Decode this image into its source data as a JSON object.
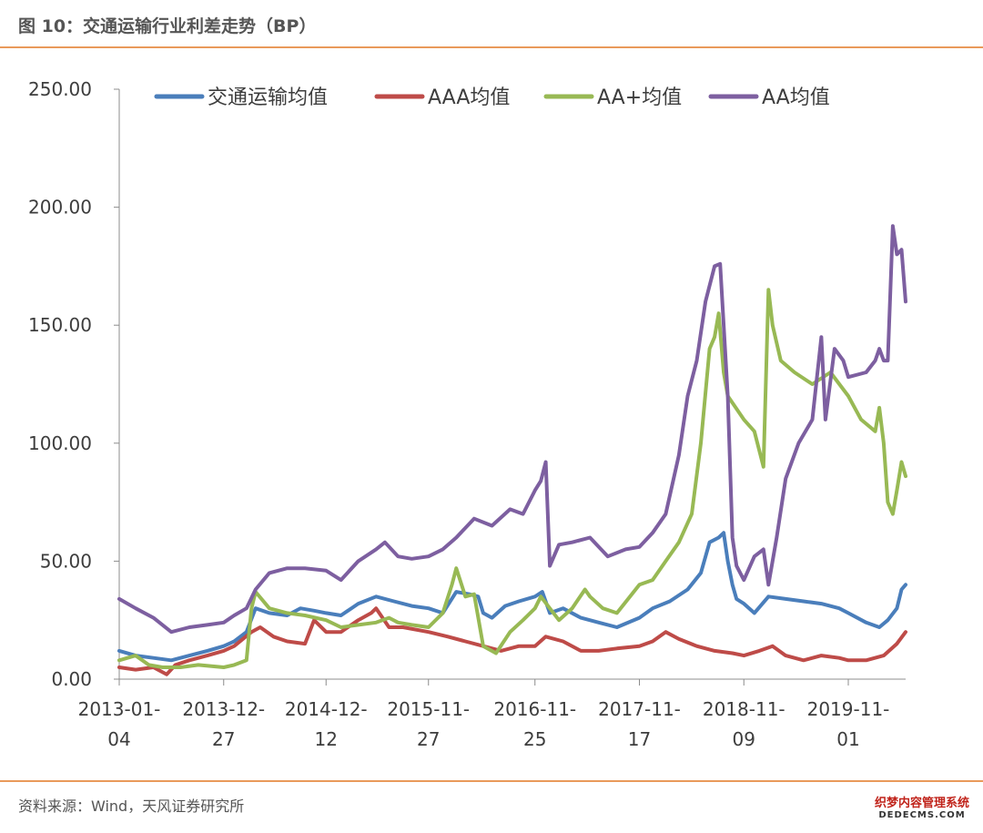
{
  "figure": {
    "title": "图 10：交通运输行业利差走势（BP）",
    "source": "资料来源：Wind，天风证券研究所",
    "watermark_top": "织梦内容管理系统",
    "watermark_bottom": "DEDECMS.COM"
  },
  "colors": {
    "accent_rule": "#e99a5a",
    "series": [
      "#4a7ebb",
      "#be4b48",
      "#98b954",
      "#7d5fa0"
    ]
  },
  "chart_data": {
    "type": "line",
    "title": "",
    "xlabel": "",
    "ylabel": "",
    "ylim": [
      0,
      250
    ],
    "y_ticks": [
      "0.00",
      "50.00",
      "100.00",
      "150.00",
      "200.00",
      "250.00"
    ],
    "x_tick_labels": [
      [
        "2013-01-",
        "04"
      ],
      [
        "2013-12-",
        "27"
      ],
      [
        "2014-12-",
        "12"
      ],
      [
        "2015-11-",
        "27"
      ],
      [
        "2016-11-",
        "25"
      ],
      [
        "2017-11-",
        "17"
      ],
      [
        "2018-11-",
        "09"
      ],
      [
        "2019-11-",
        "01"
      ]
    ],
    "x_tick_dates": [
      "2013-01-04",
      "2013-12-27",
      "2014-12-12",
      "2015-11-27",
      "2016-11-25",
      "2017-11-17",
      "2018-11-09",
      "2019-11-01"
    ],
    "grid": false,
    "legend_position": "top",
    "series": [
      {
        "name": "交通运输均值",
        "color": "#4a7ebb",
        "points": [
          [
            "2013-01-04",
            12
          ],
          [
            "2013-03-01",
            10
          ],
          [
            "2013-05-01",
            9
          ],
          [
            "2013-07-01",
            8
          ],
          [
            "2013-09-01",
            10
          ],
          [
            "2013-11-01",
            12
          ],
          [
            "2013-12-27",
            14
          ],
          [
            "2014-02-01",
            16
          ],
          [
            "2014-03-15",
            20
          ],
          [
            "2014-04-15",
            30
          ],
          [
            "2014-06-01",
            28
          ],
          [
            "2014-08-01",
            27
          ],
          [
            "2014-09-15",
            30
          ],
          [
            "2014-11-01",
            29
          ],
          [
            "2014-12-12",
            28
          ],
          [
            "2015-02-01",
            27
          ],
          [
            "2015-04-01",
            32
          ],
          [
            "2015-06-01",
            35
          ],
          [
            "2015-08-01",
            33
          ],
          [
            "2015-10-01",
            31
          ],
          [
            "2015-11-27",
            30
          ],
          [
            "2016-01-15",
            28
          ],
          [
            "2016-03-01",
            37
          ],
          [
            "2016-04-15",
            36
          ],
          [
            "2016-05-15",
            35
          ],
          [
            "2016-06-01",
            28
          ],
          [
            "2016-07-01",
            26
          ],
          [
            "2016-08-15",
            31
          ],
          [
            "2016-10-01",
            33
          ],
          [
            "2016-11-25",
            35
          ],
          [
            "2016-12-20",
            37
          ],
          [
            "2017-01-15",
            28
          ],
          [
            "2017-03-01",
            30
          ],
          [
            "2017-05-01",
            26
          ],
          [
            "2017-07-01",
            24
          ],
          [
            "2017-09-01",
            22
          ],
          [
            "2017-11-17",
            26
          ],
          [
            "2018-01-01",
            30
          ],
          [
            "2018-03-01",
            33
          ],
          [
            "2018-05-01",
            38
          ],
          [
            "2018-06-15",
            45
          ],
          [
            "2018-07-15",
            58
          ],
          [
            "2018-08-15",
            60
          ],
          [
            "2018-09-01",
            62
          ],
          [
            "2018-09-15",
            50
          ],
          [
            "2018-10-01",
            40
          ],
          [
            "2018-10-15",
            34
          ],
          [
            "2018-11-09",
            32
          ],
          [
            "2018-12-15",
            28
          ],
          [
            "2019-02-01",
            35
          ],
          [
            "2019-04-01",
            34
          ],
          [
            "2019-06-01",
            33
          ],
          [
            "2019-08-01",
            32
          ],
          [
            "2019-10-01",
            30
          ],
          [
            "2019-11-01",
            28
          ],
          [
            "2020-01-01",
            24
          ],
          [
            "2020-02-15",
            22
          ],
          [
            "2020-03-15",
            25
          ],
          [
            "2020-04-15",
            30
          ],
          [
            "2020-05-01",
            38
          ],
          [
            "2020-05-15",
            40
          ]
        ]
      },
      {
        "name": "AAA均值",
        "color": "#be4b48",
        "points": [
          [
            "2013-01-04",
            5
          ],
          [
            "2013-03-01",
            4
          ],
          [
            "2013-05-01",
            5
          ],
          [
            "2013-06-15",
            2
          ],
          [
            "2013-07-15",
            6
          ],
          [
            "2013-09-01",
            8
          ],
          [
            "2013-11-01",
            10
          ],
          [
            "2013-12-27",
            12
          ],
          [
            "2014-02-01",
            14
          ],
          [
            "2014-04-01",
            20
          ],
          [
            "2014-05-01",
            22
          ],
          [
            "2014-06-15",
            18
          ],
          [
            "2014-08-01",
            16
          ],
          [
            "2014-10-01",
            15
          ],
          [
            "2014-11-01",
            25
          ],
          [
            "2014-12-12",
            20
          ],
          [
            "2015-02-01",
            20
          ],
          [
            "2015-04-01",
            25
          ],
          [
            "2015-05-15",
            28
          ],
          [
            "2015-06-01",
            30
          ],
          [
            "2015-07-15",
            22
          ],
          [
            "2015-09-01",
            22
          ],
          [
            "2015-11-27",
            20
          ],
          [
            "2016-02-01",
            18
          ],
          [
            "2016-04-01",
            16
          ],
          [
            "2016-06-01",
            14
          ],
          [
            "2016-08-01",
            12
          ],
          [
            "2016-10-01",
            14
          ],
          [
            "2016-11-25",
            14
          ],
          [
            "2017-01-01",
            18
          ],
          [
            "2017-03-01",
            16
          ],
          [
            "2017-05-01",
            12
          ],
          [
            "2017-07-01",
            12
          ],
          [
            "2017-09-01",
            13
          ],
          [
            "2017-11-17",
            14
          ],
          [
            "2018-01-01",
            16
          ],
          [
            "2018-02-15",
            20
          ],
          [
            "2018-04-01",
            17
          ],
          [
            "2018-06-01",
            14
          ],
          [
            "2018-08-01",
            12
          ],
          [
            "2018-10-01",
            11
          ],
          [
            "2018-11-09",
            10
          ],
          [
            "2019-01-01",
            12
          ],
          [
            "2019-02-15",
            14
          ],
          [
            "2019-04-01",
            10
          ],
          [
            "2019-06-01",
            8
          ],
          [
            "2019-08-01",
            10
          ],
          [
            "2019-10-01",
            9
          ],
          [
            "2019-11-01",
            8
          ],
          [
            "2020-01-01",
            8
          ],
          [
            "2020-03-01",
            10
          ],
          [
            "2020-04-15",
            15
          ],
          [
            "2020-05-15",
            20
          ]
        ]
      },
      {
        "name": "AA+均值",
        "color": "#98b954",
        "points": [
          [
            "2013-01-04",
            8
          ],
          [
            "2013-03-01",
            10
          ],
          [
            "2013-04-15",
            6
          ],
          [
            "2013-06-01",
            5
          ],
          [
            "2013-08-01",
            5
          ],
          [
            "2013-10-01",
            6
          ],
          [
            "2013-12-27",
            5
          ],
          [
            "2014-02-01",
            6
          ],
          [
            "2014-03-15",
            8
          ],
          [
            "2014-04-01",
            30
          ],
          [
            "2014-04-15",
            37
          ],
          [
            "2014-06-01",
            30
          ],
          [
            "2014-08-01",
            28
          ],
          [
            "2014-10-01",
            27
          ],
          [
            "2014-12-12",
            25
          ],
          [
            "2015-02-01",
            22
          ],
          [
            "2015-04-01",
            23
          ],
          [
            "2015-06-01",
            24
          ],
          [
            "2015-07-15",
            26
          ],
          [
            "2015-08-15",
            24
          ],
          [
            "2015-10-01",
            23
          ],
          [
            "2015-11-27",
            22
          ],
          [
            "2016-01-15",
            28
          ],
          [
            "2016-02-15",
            40
          ],
          [
            "2016-03-01",
            47
          ],
          [
            "2016-04-01",
            35
          ],
          [
            "2016-05-01",
            36
          ],
          [
            "2016-06-01",
            14
          ],
          [
            "2016-07-15",
            11
          ],
          [
            "2016-09-01",
            20
          ],
          [
            "2016-10-15",
            25
          ],
          [
            "2016-11-25",
            30
          ],
          [
            "2016-12-15",
            35
          ],
          [
            "2017-01-15",
            30
          ],
          [
            "2017-02-15",
            25
          ],
          [
            "2017-04-01",
            30
          ],
          [
            "2017-05-15",
            38
          ],
          [
            "2017-06-01",
            35
          ],
          [
            "2017-07-15",
            30
          ],
          [
            "2017-09-01",
            28
          ],
          [
            "2017-11-17",
            40
          ],
          [
            "2018-01-01",
            42
          ],
          [
            "2018-02-15",
            50
          ],
          [
            "2018-04-01",
            58
          ],
          [
            "2018-05-15",
            70
          ],
          [
            "2018-06-15",
            100
          ],
          [
            "2018-07-15",
            140
          ],
          [
            "2018-08-01",
            145
          ],
          [
            "2018-08-15",
            155
          ],
          [
            "2018-09-01",
            130
          ],
          [
            "2018-09-15",
            120
          ],
          [
            "2018-11-09",
            110
          ],
          [
            "2018-12-15",
            105
          ],
          [
            "2019-01-15",
            90
          ],
          [
            "2019-02-01",
            165
          ],
          [
            "2019-02-15",
            150
          ],
          [
            "2019-03-15",
            135
          ],
          [
            "2019-05-01",
            130
          ],
          [
            "2019-07-01",
            125
          ],
          [
            "2019-09-01",
            130
          ],
          [
            "2019-11-01",
            120
          ],
          [
            "2019-12-15",
            110
          ],
          [
            "2020-02-01",
            105
          ],
          [
            "2020-02-15",
            115
          ],
          [
            "2020-03-01",
            100
          ],
          [
            "2020-03-15",
            75
          ],
          [
            "2020-04-01",
            70
          ],
          [
            "2020-04-15",
            80
          ],
          [
            "2020-05-01",
            92
          ],
          [
            "2020-05-15",
            86
          ]
        ]
      },
      {
        "name": "AA均值",
        "color": "#7d5fa0",
        "points": [
          [
            "2013-01-04",
            34
          ],
          [
            "2013-03-01",
            30
          ],
          [
            "2013-05-01",
            26
          ],
          [
            "2013-07-01",
            20
          ],
          [
            "2013-09-01",
            22
          ],
          [
            "2013-11-01",
            23
          ],
          [
            "2013-12-27",
            24
          ],
          [
            "2014-02-01",
            27
          ],
          [
            "2014-03-15",
            30
          ],
          [
            "2014-04-15",
            38
          ],
          [
            "2014-06-01",
            45
          ],
          [
            "2014-08-01",
            47
          ],
          [
            "2014-10-01",
            47
          ],
          [
            "2014-12-12",
            46
          ],
          [
            "2015-02-01",
            42
          ],
          [
            "2015-04-01",
            50
          ],
          [
            "2015-06-01",
            55
          ],
          [
            "2015-07-01",
            58
          ],
          [
            "2015-08-15",
            52
          ],
          [
            "2015-10-01",
            51
          ],
          [
            "2015-11-27",
            52
          ],
          [
            "2016-01-15",
            55
          ],
          [
            "2016-03-01",
            60
          ],
          [
            "2016-05-01",
            68
          ],
          [
            "2016-07-01",
            65
          ],
          [
            "2016-09-01",
            72
          ],
          [
            "2016-10-15",
            70
          ],
          [
            "2016-11-25",
            80
          ],
          [
            "2016-12-15",
            84
          ],
          [
            "2017-01-01",
            92
          ],
          [
            "2017-01-15",
            48
          ],
          [
            "2017-02-15",
            57
          ],
          [
            "2017-04-01",
            58
          ],
          [
            "2017-06-01",
            60
          ],
          [
            "2017-08-01",
            52
          ],
          [
            "2017-10-01",
            55
          ],
          [
            "2017-11-17",
            56
          ],
          [
            "2018-01-01",
            62
          ],
          [
            "2018-02-15",
            70
          ],
          [
            "2018-04-01",
            95
          ],
          [
            "2018-05-01",
            120
          ],
          [
            "2018-06-01",
            135
          ],
          [
            "2018-07-01",
            160
          ],
          [
            "2018-08-01",
            175
          ],
          [
            "2018-08-20",
            176
          ],
          [
            "2018-09-15",
            120
          ],
          [
            "2018-10-01",
            60
          ],
          [
            "2018-10-15",
            48
          ],
          [
            "2018-11-09",
            42
          ],
          [
            "2018-12-15",
            52
          ],
          [
            "2019-01-15",
            55
          ],
          [
            "2019-02-01",
            40
          ],
          [
            "2019-03-01",
            60
          ],
          [
            "2019-04-01",
            85
          ],
          [
            "2019-05-15",
            100
          ],
          [
            "2019-07-01",
            110
          ],
          [
            "2019-08-01",
            145
          ],
          [
            "2019-08-15",
            110
          ],
          [
            "2019-09-15",
            140
          ],
          [
            "2019-10-15",
            135
          ],
          [
            "2019-11-01",
            128
          ],
          [
            "2020-01-01",
            130
          ],
          [
            "2020-02-01",
            135
          ],
          [
            "2020-02-15",
            140
          ],
          [
            "2020-03-01",
            135
          ],
          [
            "2020-03-15",
            135
          ],
          [
            "2020-04-01",
            192
          ],
          [
            "2020-04-15",
            180
          ],
          [
            "2020-05-01",
            182
          ],
          [
            "2020-05-15",
            160
          ]
        ]
      }
    ]
  }
}
